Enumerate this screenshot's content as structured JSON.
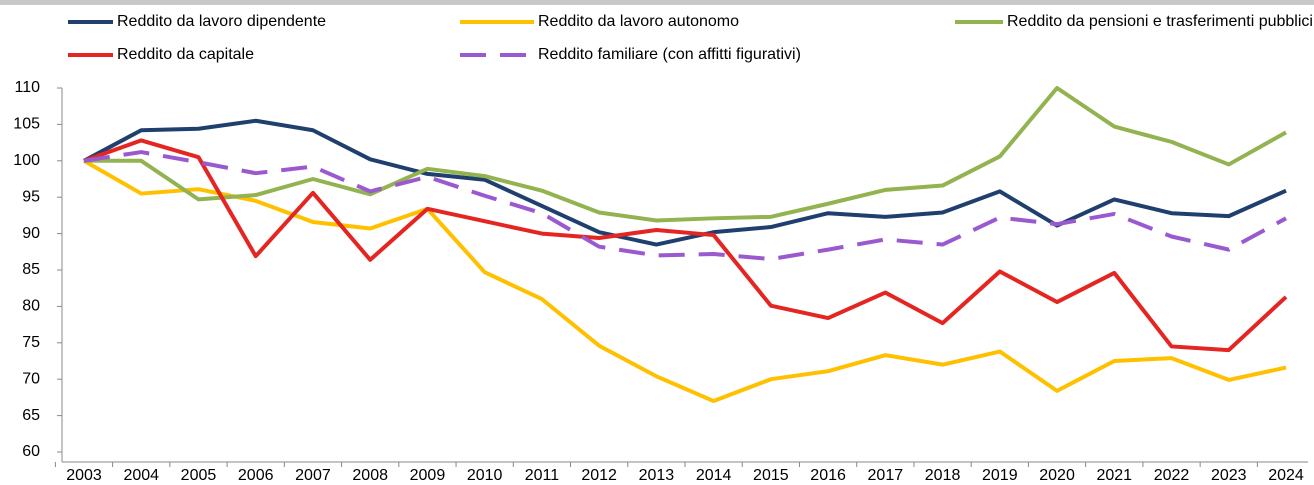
{
  "chart_data": {
    "type": "line",
    "categories": [
      "2003",
      "2004",
      "2005",
      "2006",
      "2007",
      "2008",
      "2009",
      "2010",
      "2011",
      "2012",
      "2013",
      "2014",
      "2015",
      "2016",
      "2017",
      "2018",
      "2019",
      "2020",
      "2021",
      "2022",
      "2023",
      "2024"
    ],
    "series": [
      {
        "name": "Reddito da lavoro dipendente",
        "color": "#1f3f6e",
        "style": "solid",
        "values": [
          100,
          104.2,
          104.4,
          105.5,
          104.2,
          100.2,
          98.2,
          97.4,
          93.8,
          90.2,
          88.5,
          90.2,
          90.9,
          92.8,
          92.3,
          92.9,
          95.8,
          91.1,
          94.7,
          92.8,
          92.4,
          95.9
        ]
      },
      {
        "name": "Reddito da lavoro autonomo",
        "color": "#ffc000",
        "style": "solid",
        "values": [
          100,
          95.5,
          96.1,
          94.5,
          91.6,
          90.7,
          93.4,
          84.7,
          81,
          74.6,
          70.4,
          67,
          70,
          71.1,
          73.3,
          72,
          73.8,
          68.4,
          72.5,
          72.9,
          69.9,
          71.6
        ]
      },
      {
        "name": "Reddito da pensioni e trasferimenti pubblici",
        "color": "#92b34f",
        "style": "solid",
        "values": [
          100,
          100,
          94.7,
          95.3,
          97.5,
          95.4,
          98.9,
          97.9,
          95.9,
          92.9,
          91.8,
          92.1,
          92.3,
          94.1,
          96,
          96.6,
          100.6,
          110,
          104.7,
          102.6,
          99.5,
          103.9
        ]
      },
      {
        "name": "Reddito da capitale",
        "color": "#e52521",
        "style": "solid",
        "values": [
          100,
          102.8,
          100.5,
          86.9,
          95.6,
          86.4,
          93.4,
          91.7,
          90,
          89.4,
          90.5,
          89.8,
          80.1,
          78.4,
          81.9,
          77.7,
          84.8,
          80.6,
          84.6,
          74.5,
          74,
          81.3
        ]
      },
      {
        "name": "Reddito familiare (con affitti figurativi)",
        "color": "#9b59d0",
        "style": "dashed",
        "values": [
          100,
          101.2,
          99.8,
          98.3,
          99.2,
          95.8,
          97.8,
          95.2,
          92.8,
          88.2,
          87,
          87.2,
          86.5,
          87.8,
          89.2,
          88.5,
          92.2,
          91.3,
          92.7,
          89.6,
          87.8,
          92.1
        ]
      }
    ],
    "ylim": [
      60,
      110
    ],
    "yticks": [
      60,
      65,
      70,
      75,
      80,
      85,
      90,
      95,
      100,
      105,
      110
    ],
    "grid": false,
    "legend": "top"
  }
}
